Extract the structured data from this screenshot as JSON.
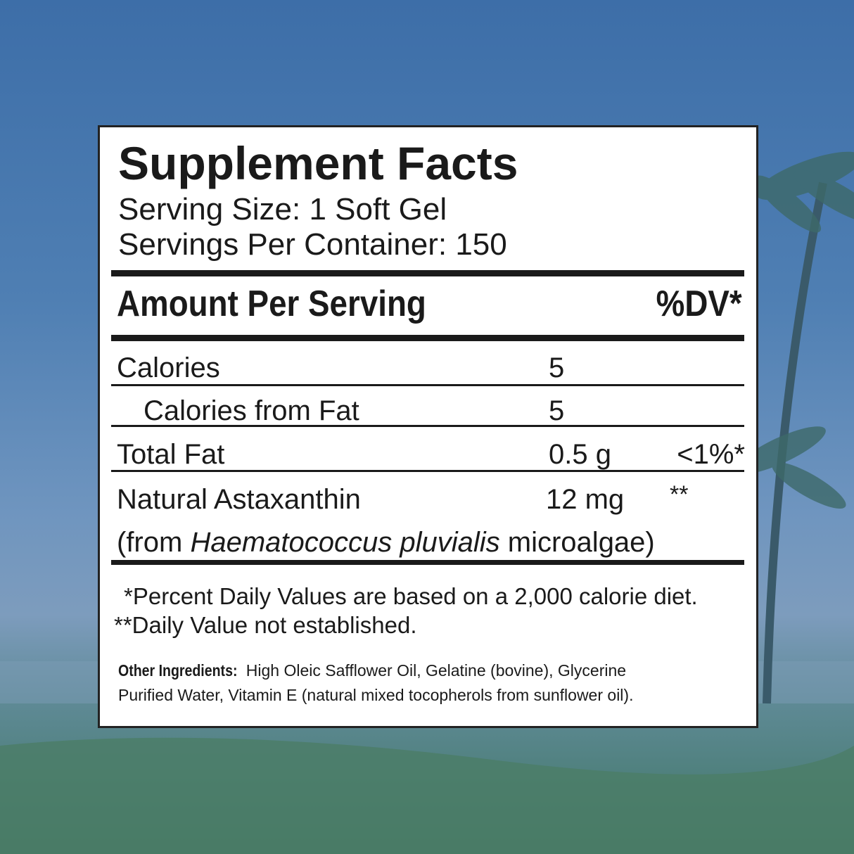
{
  "title": "Supplement Facts",
  "serving_size": "Serving Size: 1 Soft Gel",
  "servings_per_container": "Servings Per Container: 150",
  "header": {
    "amount": "Amount Per Serving",
    "dv": "%DV*"
  },
  "rows": [
    {
      "name": "Calories",
      "amount": "5"
    },
    {
      "name": "Calories from Fat",
      "amount": "5"
    },
    {
      "name": "Total Fat",
      "amount": "0.5 g",
      "dv": "<1%*"
    },
    {
      "name": "Natural Astaxanthin",
      "amount": "12 mg",
      "dv": "**"
    }
  ],
  "source": {
    "prefix": "(from",
    "species": "Haematococcus pluvialis",
    "suffix": "microalgae)"
  },
  "footnotes": [
    "*Percent Daily Values are based on a 2,000 calorie diet.",
    "**Daily Value not established."
  ],
  "other_ingredients": {
    "label": "Other Ingredients:",
    "lines": [
      "High Oleic Safflower Oil, Gelatine (bovine), Glycerine",
      "Purified Water, Vitamin E (natural mixed tocopherols from sunflower oil)."
    ]
  }
}
